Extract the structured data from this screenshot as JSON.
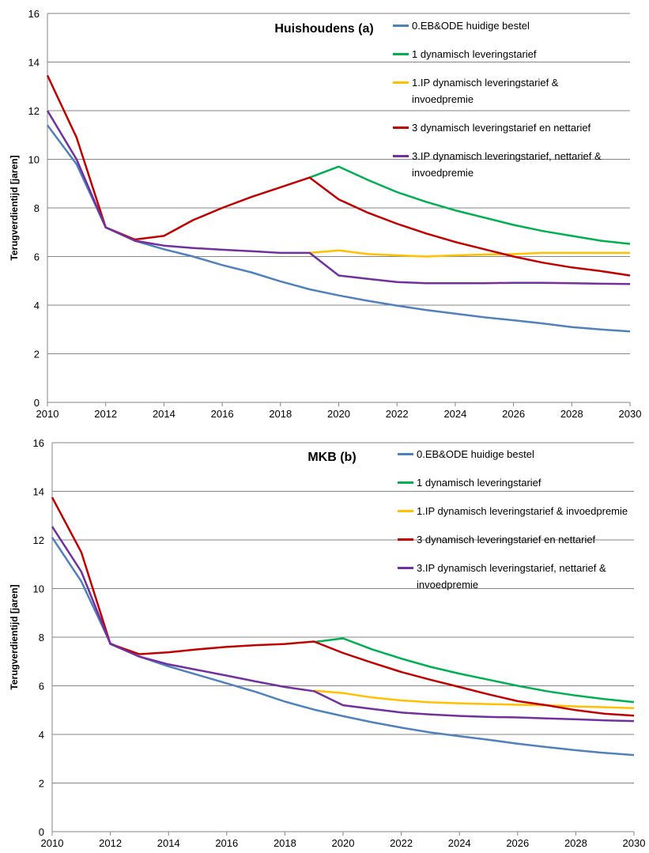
{
  "chart_data": [
    {
      "type": "line",
      "title": "Huishoudens (a)",
      "y_label": "Terugverdientijd [jaren]",
      "x": [
        2010,
        2011,
        2012,
        2013,
        2014,
        2015,
        2016,
        2017,
        2018,
        2019,
        2020,
        2021,
        2022,
        2023,
        2024,
        2025,
        2026,
        2027,
        2028,
        2029,
        2030
      ],
      "xlim": [
        2010,
        2030
      ],
      "xticks": [
        2010,
        2012,
        2014,
        2016,
        2018,
        2020,
        2022,
        2024,
        2026,
        2028,
        2030
      ],
      "ylim": [
        0,
        16
      ],
      "yticks": [
        0,
        2,
        4,
        6,
        8,
        10,
        12,
        14,
        16
      ],
      "grid": true,
      "legend": "top-right",
      "series": [
        {
          "name": "0.EB&ODE huidige bestel",
          "color": "#4f81bd",
          "values": [
            11.4,
            9.8,
            7.2,
            6.65,
            6.3,
            6.0,
            5.65,
            5.35,
            4.98,
            4.65,
            4.4,
            4.18,
            3.98,
            3.8,
            3.65,
            3.5,
            3.38,
            3.25,
            3.1,
            3.0,
            2.92
          ]
        },
        {
          "name": "1 dynamisch leveringstarief",
          "color": "#00b050",
          "values": [
            null,
            null,
            null,
            null,
            null,
            null,
            null,
            null,
            null,
            9.25,
            9.7,
            9.15,
            8.65,
            8.25,
            7.9,
            7.6,
            7.3,
            7.05,
            6.85,
            6.65,
            6.52
          ]
        },
        {
          "name": "1.IP dynamisch leveringstarief & invoedpremie",
          "color": "#ffc000",
          "values": [
            null,
            null,
            null,
            null,
            null,
            null,
            null,
            null,
            null,
            6.15,
            6.25,
            6.1,
            6.05,
            6.0,
            6.05,
            6.08,
            6.1,
            6.15,
            6.15,
            6.15,
            6.15
          ]
        },
        {
          "name": "3 dynamisch leveringstarief en nettarief",
          "color": "#c00000",
          "values": [
            13.45,
            10.9,
            7.2,
            6.7,
            6.85,
            7.5,
            8.0,
            8.45,
            8.85,
            9.25,
            8.35,
            7.8,
            7.35,
            6.95,
            6.6,
            6.3,
            6.0,
            5.75,
            5.55,
            5.4,
            5.22
          ]
        },
        {
          "name": "3.IP dynamisch leveringstarief, nettarief & invoedpremie",
          "color": "#7030a0",
          "values": [
            12.0,
            10.0,
            7.2,
            6.65,
            6.45,
            6.35,
            6.28,
            6.22,
            6.15,
            6.15,
            5.22,
            5.08,
            4.95,
            4.9,
            4.9,
            4.9,
            4.92,
            4.92,
            4.9,
            4.88,
            4.87
          ]
        }
      ]
    },
    {
      "type": "line",
      "title": "MKB (b)",
      "y_label": "Terugverdientijd [jaren]",
      "x": [
        2010,
        2011,
        2012,
        2013,
        2014,
        2015,
        2016,
        2017,
        2018,
        2019,
        2020,
        2021,
        2022,
        2023,
        2024,
        2025,
        2026,
        2027,
        2028,
        2029,
        2030
      ],
      "xlim": [
        2010,
        2030
      ],
      "xticks": [
        2010,
        2012,
        2014,
        2016,
        2018,
        2020,
        2022,
        2024,
        2026,
        2028,
        2030
      ],
      "ylim": [
        0,
        16
      ],
      "yticks": [
        0,
        2,
        4,
        6,
        8,
        10,
        12,
        14,
        16
      ],
      "grid": true,
      "legend": "top-right",
      "series": [
        {
          "name": "0.EB&ODE huidige bestel",
          "color": "#4f81bd",
          "values": [
            12.1,
            10.3,
            7.75,
            7.2,
            6.8,
            6.45,
            6.1,
            5.75,
            5.35,
            5.02,
            4.75,
            4.5,
            4.28,
            4.08,
            3.93,
            3.78,
            3.62,
            3.48,
            3.35,
            3.24,
            3.15
          ]
        },
        {
          "name": "1 dynamisch leveringstarief",
          "color": "#00b050",
          "values": [
            null,
            null,
            null,
            null,
            null,
            null,
            null,
            null,
            null,
            7.8,
            7.95,
            7.5,
            7.12,
            6.78,
            6.5,
            6.25,
            6.0,
            5.78,
            5.6,
            5.45,
            5.33
          ]
        },
        {
          "name": "1.IP dynamisch leveringstarief & invoedpremie",
          "color": "#ffc000",
          "values": [
            null,
            null,
            null,
            null,
            null,
            null,
            null,
            null,
            null,
            5.8,
            5.7,
            5.52,
            5.4,
            5.32,
            5.28,
            5.25,
            5.22,
            5.2,
            5.15,
            5.12,
            5.08
          ]
        },
        {
          "name": "3 dynamisch leveringstarief en nettarief",
          "color": "#c00000",
          "values": [
            13.75,
            11.5,
            7.72,
            7.3,
            7.38,
            7.5,
            7.6,
            7.67,
            7.72,
            7.82,
            7.35,
            6.95,
            6.57,
            6.25,
            5.95,
            5.65,
            5.37,
            5.2,
            5.0,
            4.85,
            4.77
          ]
        },
        {
          "name": "3.IP dynamisch leveringstarief, nettarief & invoedpremie",
          "color": "#7030a0",
          "values": [
            12.55,
            10.7,
            7.72,
            7.2,
            6.88,
            6.65,
            6.42,
            6.18,
            5.95,
            5.78,
            5.2,
            5.05,
            4.9,
            4.82,
            4.76,
            4.72,
            4.7,
            4.66,
            4.62,
            4.58,
            4.55
          ]
        }
      ]
    }
  ]
}
